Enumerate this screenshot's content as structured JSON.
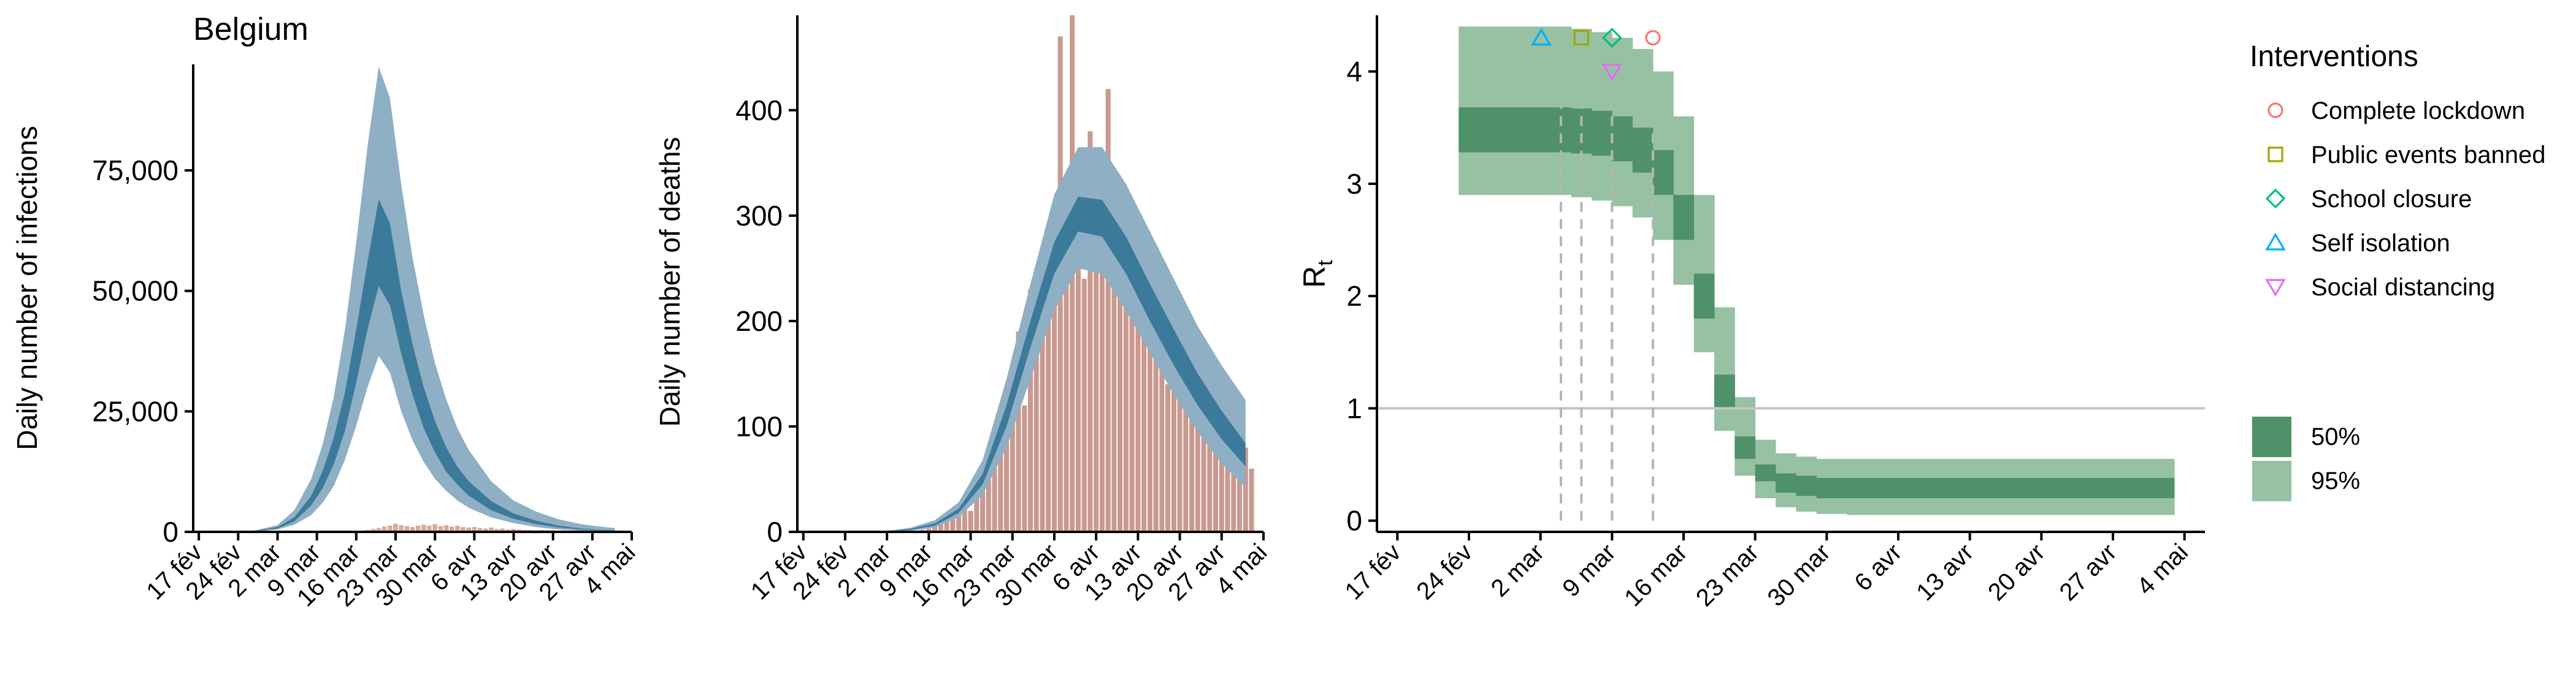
{
  "chart_data": [
    {
      "type": "area",
      "title": "Belgium",
      "xlabel": "",
      "ylabel": "Daily number of infections",
      "categories": [
        "17 fév",
        "24 fév",
        "2 mar",
        "9 mar",
        "16 mar",
        "23 mar",
        "30 mar",
        "6 avr",
        "13 avr",
        "20 avr",
        "27 avr",
        "4 mai"
      ],
      "xlim": [
        -1,
        77
      ],
      "ylim": [
        0,
        97000
      ],
      "yticks": [
        0,
        25000,
        50000,
        75000
      ],
      "ytick_labels": [
        "0",
        "25,000",
        "50,000",
        "75,000"
      ],
      "bands": {
        "x": [
          0,
          7,
          10,
          14,
          17,
          20,
          22,
          24,
          26,
          28,
          30,
          32,
          34,
          36,
          38,
          40,
          42,
          44,
          46,
          48,
          52,
          56,
          60,
          64,
          68,
          72,
          74
        ],
        "low95": [
          0,
          0,
          100,
          500,
          1500,
          3500,
          6000,
          9500,
          15000,
          22000,
          30000,
          36500,
          33000,
          25000,
          19000,
          14500,
          11000,
          8500,
          6500,
          5000,
          3000,
          1800,
          1000,
          500,
          200,
          80,
          50
        ],
        "low50": [
          0,
          0,
          150,
          700,
          2200,
          5500,
          9000,
          14000,
          21000,
          31000,
          42000,
          51000,
          47000,
          37000,
          28500,
          21500,
          16500,
          12500,
          9800,
          7500,
          4500,
          2700,
          1600,
          900,
          500,
          300,
          200
        ],
        "high50": [
          0,
          0,
          200,
          1000,
          3000,
          7500,
          12500,
          19500,
          29000,
          42000,
          56000,
          69000,
          64000,
          50000,
          39000,
          30000,
          23000,
          17500,
          13500,
          10500,
          6400,
          3800,
          2300,
          1300,
          700,
          400,
          300
        ],
        "high95": [
          0,
          0,
          300,
          1400,
          4500,
          11000,
          18000,
          28000,
          42000,
          60000,
          80000,
          96500,
          90000,
          72000,
          57000,
          45000,
          35000,
          27500,
          21500,
          17000,
          10500,
          6500,
          4200,
          2600,
          1600,
          1000,
          800
        ]
      },
      "bars": {
        "x": [
          24,
          26,
          28,
          30,
          31,
          32,
          33,
          34,
          35,
          36,
          37,
          38,
          39,
          40,
          41,
          42,
          43,
          44,
          45,
          46,
          47,
          48,
          49,
          50,
          51,
          52,
          53,
          54,
          55,
          56,
          57,
          58,
          59,
          60,
          61,
          62,
          63,
          64,
          65,
          66,
          67,
          68,
          69,
          70,
          71,
          72,
          73,
          74
        ],
        "values": [
          50,
          100,
          200,
          400,
          600,
          800,
          1100,
          1300,
          1700,
          1400,
          1200,
          1000,
          1300,
          1500,
          1300,
          1600,
          1200,
          1400,
          1100,
          1300,
          1000,
          900,
          1000,
          800,
          700,
          900,
          600,
          700,
          500,
          600,
          500,
          400,
          400,
          300,
          400,
          300,
          300,
          200,
          300,
          200,
          200,
          150,
          200,
          150,
          100,
          100,
          100,
          80
        ]
      },
      "colors": {
        "band95": "#8fafc4",
        "band50": "#3b7a9b",
        "bars": "#d9a8a0"
      }
    },
    {
      "type": "area",
      "title": "",
      "xlabel": "",
      "ylabel": "Daily number of deaths",
      "categories": [
        "17 fév",
        "24 fév",
        "2 mar",
        "9 mar",
        "16 mar",
        "23 mar",
        "30 mar",
        "6 avr",
        "13 avr",
        "20 avr",
        "27 avr",
        "4 mai"
      ],
      "xlim": [
        -1,
        77
      ],
      "ylim": [
        0,
        490
      ],
      "yticks": [
        0,
        100,
        200,
        300,
        400
      ],
      "ytick_labels": [
        "0",
        "100",
        "200",
        "300",
        "400"
      ],
      "bands": {
        "x": [
          14,
          18,
          22,
          26,
          30,
          34,
          38,
          42,
          46,
          50,
          54,
          58,
          62,
          66,
          70,
          74
        ],
        "low95": [
          0,
          1,
          4,
          14,
          35,
          80,
          145,
          210,
          250,
          245,
          210,
          170,
          130,
          95,
          65,
          42
        ],
        "low50": [
          0,
          2,
          6,
          18,
          45,
          100,
          175,
          245,
          285,
          280,
          245,
          200,
          158,
          120,
          88,
          62
        ],
        "high50": [
          0,
          3,
          8,
          22,
          55,
          120,
          200,
          275,
          318,
          315,
          280,
          235,
          192,
          150,
          115,
          84
        ],
        "high95": [
          1,
          4,
          11,
          28,
          68,
          145,
          235,
          320,
          365,
          365,
          330,
          285,
          240,
          195,
          158,
          125
        ]
      },
      "bars": {
        "x": [
          20,
          21,
          22,
          23,
          24,
          25,
          26,
          27,
          28,
          29,
          30,
          31,
          32,
          33,
          34,
          35,
          36,
          37,
          38,
          39,
          40,
          41,
          42,
          43,
          44,
          45,
          46,
          47,
          48,
          49,
          50,
          51,
          52,
          53,
          54,
          55,
          56,
          57,
          58,
          59,
          60,
          61,
          62,
          63,
          64,
          65,
          66,
          67,
          68,
          69,
          70,
          71,
          72,
          73,
          74,
          75
        ],
        "values": [
          2,
          3,
          5,
          8,
          12,
          18,
          25,
          30,
          20,
          40,
          50,
          60,
          80,
          100,
          120,
          140,
          190,
          120,
          230,
          170,
          210,
          230,
          250,
          470,
          280,
          490,
          250,
          240,
          380,
          320,
          300,
          420,
          280,
          260,
          300,
          240,
          210,
          240,
          220,
          200,
          220,
          140,
          230,
          190,
          170,
          180,
          120,
          150,
          130,
          110,
          120,
          100,
          90,
          70,
          80,
          60
        ]
      },
      "colors": {
        "band95": "#8fafc4",
        "band50": "#3b7a9b",
        "bars": "#c9998f"
      }
    },
    {
      "type": "area",
      "title": "",
      "xlabel": "",
      "ylabel": "R",
      "ylabel_sub": "t",
      "categories": [
        "17 fév",
        "24 fév",
        "2 mar",
        "9 mar",
        "16 mar",
        "23 mar",
        "30 mar",
        "6 avr",
        "13 avr",
        "20 avr",
        "27 avr",
        "4 mai"
      ],
      "xlim": [
        -2,
        79
      ],
      "ylim": [
        -0.1,
        4.5
      ],
      "yticks": [
        0,
        1,
        2,
        3,
        4
      ],
      "ytick_labels": [
        "0",
        "1",
        "2",
        "3",
        "4"
      ],
      "reference_line": 1,
      "bands": {
        "x": [
          6,
          13,
          15,
          17,
          19,
          21,
          23,
          25,
          27,
          29,
          31,
          33,
          35,
          37,
          39,
          41,
          44,
          48,
          52,
          56,
          60,
          64,
          68,
          72,
          75
        ],
        "low95": [
          2.9,
          2.9,
          2.9,
          2.88,
          2.85,
          2.8,
          2.7,
          2.5,
          2.1,
          1.5,
          0.8,
          0.4,
          0.2,
          0.12,
          0.08,
          0.06,
          0.05,
          0.05,
          0.05,
          0.05,
          0.05,
          0.05,
          0.05,
          0.05,
          0.05
        ],
        "low50": [
          3.28,
          3.28,
          3.28,
          3.27,
          3.25,
          3.2,
          3.1,
          2.9,
          2.5,
          1.8,
          1.0,
          0.55,
          0.35,
          0.25,
          0.22,
          0.2,
          0.2,
          0.2,
          0.2,
          0.2,
          0.2,
          0.2,
          0.2,
          0.2,
          0.2
        ],
        "high50": [
          3.68,
          3.68,
          3.68,
          3.67,
          3.65,
          3.6,
          3.5,
          3.3,
          2.9,
          2.2,
          1.3,
          0.75,
          0.5,
          0.42,
          0.4,
          0.38,
          0.38,
          0.38,
          0.38,
          0.38,
          0.38,
          0.38,
          0.38,
          0.38,
          0.38
        ],
        "high95": [
          4.4,
          4.4,
          4.4,
          4.38,
          4.35,
          4.3,
          4.2,
          4.0,
          3.6,
          2.9,
          1.9,
          1.1,
          0.72,
          0.6,
          0.57,
          0.55,
          0.55,
          0.55,
          0.55,
          0.55,
          0.55,
          0.55,
          0.55,
          0.55,
          0.55
        ]
      },
      "interventions": [
        {
          "name": "Complete lockdown",
          "x": 25,
          "symbol": "circle",
          "color": "#f8766d",
          "y": 4.3
        },
        {
          "name": "Public events banned",
          "x": 18,
          "symbol": "square",
          "color": "#a3a500",
          "y": 4.3
        },
        {
          "name": "School closure",
          "x": 21,
          "symbol": "diamond",
          "color": "#00bf7d",
          "y": 4.3
        },
        {
          "name": "Self isolation",
          "x": 16,
          "symbol": "triangle-up",
          "color": "#00b0f6",
          "y": 4.3
        },
        {
          "name": "Social distancing",
          "x": 21,
          "symbol": "triangle-down",
          "color": "#e76bf3",
          "y": 4.0
        }
      ],
      "legend": {
        "interventions_title": "Interventions",
        "items": [
          "Complete lockdown",
          "Public events banned",
          "School closure",
          "Self isolation",
          "Social distancing"
        ],
        "bands": [
          {
            "label": "50%",
            "color": "#4f9168"
          },
          {
            "label": "95%",
            "color": "#96c1a3"
          }
        ],
        "position": "right"
      },
      "colors": {
        "band95": "#96c1a3",
        "band50": "#4f9168",
        "refline": "#c4c4c4",
        "dashed": "#b5b5b5"
      }
    }
  ]
}
